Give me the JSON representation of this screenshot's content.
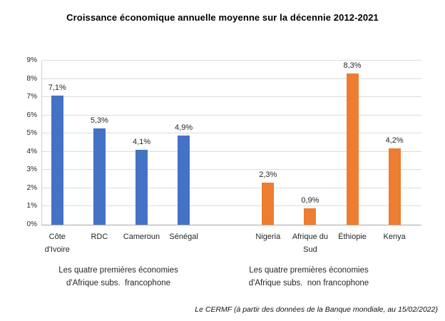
{
  "chart_data": {
    "type": "bar",
    "title": "Croissance économique annuelle moyenne sur la décennie 2012-2021",
    "xlabel": "",
    "ylabel": "",
    "ylim": [
      0,
      9
    ],
    "ytick_step": 1,
    "ytick_suffix": "%",
    "grid": true,
    "legend": "none",
    "groups": [
      {
        "label": "Les quatre premières économies\nd'Afrique subs.  francophone",
        "color": "#4472C4",
        "categories": [
          "Côte\nd'Ivoire",
          "RDC",
          "Cameroun",
          "Sénégal"
        ],
        "values": [
          7.1,
          5.3,
          4.1,
          4.9
        ],
        "value_labels": [
          "7,1%",
          "5,3%",
          "4,1%",
          "4,9%"
        ]
      },
      {
        "label": "Les quatre premières économies\nd'Afrique subs.  non francophone",
        "color": "#ED7D31",
        "categories": [
          "Nigeria",
          "Afrique du\nSud",
          "Éthiopie",
          "Kenya"
        ],
        "values": [
          2.3,
          0.9,
          8.3,
          4.2
        ],
        "value_labels": [
          "2,3%",
          "0,9%",
          "8,3%",
          "4,2%"
        ]
      }
    ],
    "source_note": "Le CERMF (à partir des données de la Banque mondiale, au 15/02/2022)"
  }
}
